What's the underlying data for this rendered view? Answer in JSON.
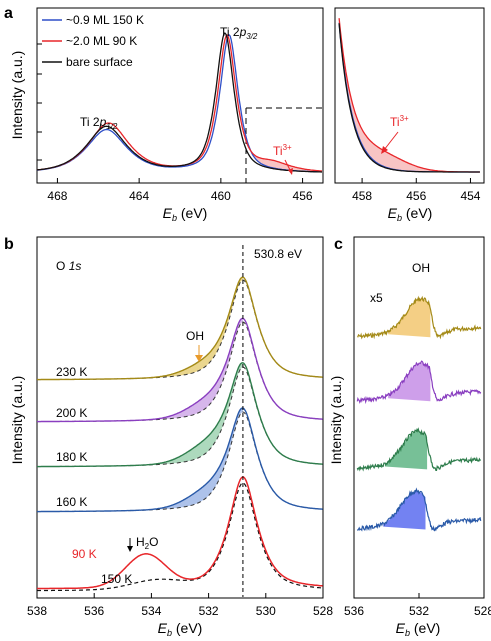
{
  "panel_labels": {
    "a": "a",
    "b": "b",
    "c": "c"
  },
  "colors": {
    "blue": "#2f4fc8",
    "red": "#e8262a",
    "black": "#111111",
    "gold": "#a48a17",
    "purple": "#8a3fc0",
    "green": "#2e7d4c",
    "blue_b": "#2a5aa8"
  },
  "chart_data": [
    {
      "id": "a-left",
      "type": "line",
      "ylabel_prefix": "Intensity",
      "ylabel_unit": "(a.u.)",
      "xlabel_main": "E",
      "xlabel_sub": "b",
      "xlabel_unit": "(eV)",
      "xlim": [
        469,
        455
      ],
      "xticks": [
        "468",
        "464",
        "460",
        "456"
      ],
      "legend": [
        "~0.9 ML 150 K",
        "~2.0 ML 90 K",
        "bare surface"
      ],
      "annotations": {
        "p12_main": "Ti 2",
        "p12_sub": "p",
        "p12_idx": "1/2",
        "p32_main": "Ti 2",
        "p32_sub": "p",
        "p32_idx": "3/2",
        "ti3": "Ti",
        "ti3_sup": "3+"
      },
      "series": [
        {
          "name": "~0.9 ML 150 K",
          "color": "#2f4fc8",
          "peaks": [
            [
              465.6,
              0.27,
              1.1
            ],
            [
              459.6,
              0.86,
              0.5
            ]
          ]
        },
        {
          "name": "~2.0 ML 90 K",
          "color": "#e8262a",
          "peaks": [
            [
              465.5,
              0.31,
              1.1
            ],
            [
              459.7,
              0.85,
              0.5
            ],
            [
              457.5,
              0.05,
              1.0
            ]
          ]
        },
        {
          "name": "bare surface",
          "color": "#111111",
          "peaks": [
            [
              465.6,
              0.29,
              1.1
            ],
            [
              459.8,
              0.87,
              0.5
            ]
          ]
        }
      ]
    },
    {
      "id": "a-right",
      "type": "line",
      "xlabel_main": "E",
      "xlabel_sub": "b",
      "xlabel_unit": "(eV)",
      "xlim": [
        459,
        453.5
      ],
      "xticks": [
        "458",
        "456",
        "454"
      ],
      "annotation": "Ti",
      "annotation_sup": "3+"
    },
    {
      "id": "b",
      "type": "line",
      "title_main": "O",
      "title_italic": "1s",
      "ylabel_prefix": "Intensity",
      "ylabel_unit": "(a.u.)",
      "xlabel_main": "E",
      "xlabel_sub": "b",
      "xlabel_unit": "(eV)",
      "xlim": [
        538,
        528
      ],
      "xticks": [
        "538",
        "536",
        "534",
        "532",
        "530",
        "528"
      ],
      "peak_label": "530.8 eV",
      "peak_position": 530.8,
      "oh_label": "OH",
      "h2o_label": "H",
      "h2o_sub": "2",
      "h2o_tail": "O",
      "series": [
        {
          "name": "230 K",
          "color": "#a48a17"
        },
        {
          "name": "200 K",
          "color": "#8a3fc0"
        },
        {
          "name": "180 K",
          "color": "#2e7d4c"
        },
        {
          "name": "160 K",
          "color": "#2a5aa8"
        },
        {
          "name": "90 K",
          "color": "#e8262a"
        },
        {
          "name": "150 K",
          "color": "#111111"
        }
      ]
    },
    {
      "id": "c",
      "type": "area",
      "ylabel_prefix": "Intensity",
      "ylabel_unit": "(a.u.)",
      "xlabel_main": "E",
      "xlabel_sub": "b",
      "xlabel_unit": "(eV)",
      "xlim": [
        536,
        528
      ],
      "xticks": [
        "536",
        "532",
        "528"
      ],
      "oh_label": "OH",
      "scale_label": "x5",
      "series": [
        {
          "color": "#a48a17",
          "center": 531.9
        },
        {
          "color": "#8a3fc0",
          "center": 531.9
        },
        {
          "color": "#2e7d4c",
          "center": 532.1
        },
        {
          "color": "#2a5aa8",
          "center": 532.2
        }
      ]
    }
  ]
}
